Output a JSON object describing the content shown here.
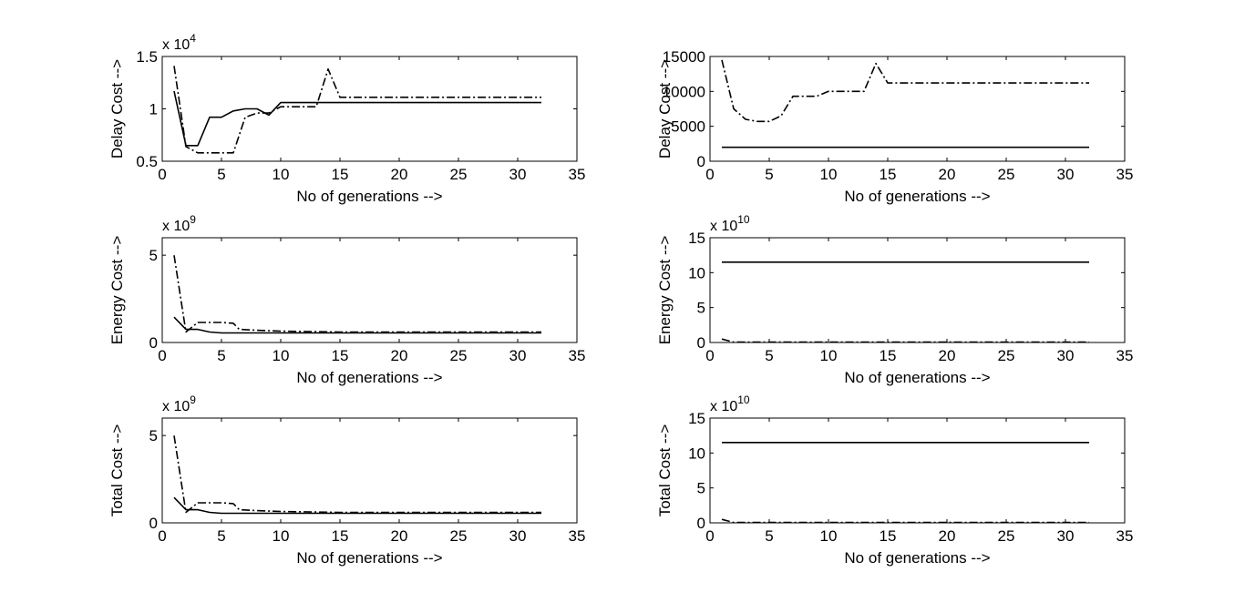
{
  "chart_data": [
    {
      "type": "line",
      "xlabel": "No of generations -->",
      "ylabel": "Delay Cost -->",
      "xlim": [
        0,
        35
      ],
      "xticks": [
        0,
        5,
        10,
        15,
        20,
        25,
        30,
        35
      ],
      "ylim": [
        0.5,
        1.5
      ],
      "yticks": [
        0.5,
        1,
        1.5
      ],
      "ytick_labels": [
        "0.5",
        "1",
        "1.5"
      ],
      "exponent_base": "x 10",
      "exponent_power": "4",
      "grid": false,
      "series": [
        {
          "style": "solid",
          "x": [
            1,
            2,
            3,
            4,
            5,
            6,
            7,
            8,
            9,
            10,
            11,
            12,
            13,
            14,
            15,
            16,
            20,
            25,
            30,
            32
          ],
          "y": [
            1.17,
            0.65,
            0.65,
            0.92,
            0.92,
            0.98,
            1.0,
            1.0,
            0.94,
            1.06,
            1.06,
            1.06,
            1.06,
            1.06,
            1.06,
            1.06,
            1.06,
            1.06,
            1.06,
            1.06
          ]
        },
        {
          "style": "dashdot",
          "x": [
            1,
            2,
            3,
            4,
            5,
            6,
            7,
            8,
            9,
            10,
            11,
            12,
            13,
            14,
            15,
            16,
            20,
            25,
            30,
            32
          ],
          "y": [
            1.41,
            0.64,
            0.58,
            0.58,
            0.58,
            0.58,
            0.92,
            0.96,
            0.96,
            1.02,
            1.02,
            1.02,
            1.02,
            1.38,
            1.11,
            1.11,
            1.11,
            1.11,
            1.11,
            1.11
          ]
        }
      ]
    },
    {
      "type": "line",
      "xlabel": "No of generations -->",
      "ylabel": "Delay Cost -->",
      "xlim": [
        0,
        35
      ],
      "xticks": [
        0,
        5,
        10,
        15,
        20,
        25,
        30,
        35
      ],
      "ylim": [
        0,
        15000
      ],
      "yticks": [
        0,
        5000,
        10000,
        15000
      ],
      "ytick_labels": [
        "0",
        "5000",
        "10000",
        "15000"
      ],
      "exponent_base": "",
      "exponent_power": "",
      "grid": false,
      "series": [
        {
          "style": "solid",
          "x": [
            1,
            32
          ],
          "y": [
            2000,
            2000
          ]
        },
        {
          "style": "dashdot",
          "x": [
            1,
            2,
            3,
            4,
            5,
            6,
            7,
            8,
            9,
            10,
            11,
            12,
            13,
            14,
            15,
            16,
            20,
            25,
            30,
            32
          ],
          "y": [
            14500,
            7500,
            6000,
            5700,
            5700,
            6500,
            9300,
            9300,
            9300,
            10000,
            10000,
            10000,
            10000,
            14000,
            11200,
            11200,
            11200,
            11200,
            11200,
            11200
          ]
        }
      ]
    },
    {
      "type": "line",
      "xlabel": "No of generations -->",
      "ylabel": "Energy Cost -->",
      "xlim": [
        0,
        35
      ],
      "xticks": [
        0,
        5,
        10,
        15,
        20,
        25,
        30,
        35
      ],
      "ylim": [
        0,
        6
      ],
      "yticks": [
        0,
        5
      ],
      "ytick_labels": [
        "0",
        "5"
      ],
      "exponent_base": "x 10",
      "exponent_power": "9",
      "grid": false,
      "series": [
        {
          "style": "solid",
          "x": [
            1,
            2,
            3,
            4,
            5,
            6,
            8,
            10,
            15,
            20,
            25,
            30,
            32
          ],
          "y": [
            1.45,
            0.75,
            0.75,
            0.6,
            0.55,
            0.55,
            0.55,
            0.55,
            0.55,
            0.55,
            0.55,
            0.55,
            0.55
          ]
        },
        {
          "style": "dashdot",
          "x": [
            1,
            2,
            3,
            4,
            5,
            6,
            6.5,
            8,
            10,
            15,
            20,
            25,
            30,
            32
          ],
          "y": [
            5.0,
            0.6,
            1.15,
            1.15,
            1.15,
            1.1,
            0.75,
            0.7,
            0.65,
            0.6,
            0.6,
            0.6,
            0.6,
            0.6
          ]
        }
      ]
    },
    {
      "type": "line",
      "xlabel": "No of generations -->",
      "ylabel": "Energy Cost -->",
      "xlim": [
        0,
        35
      ],
      "xticks": [
        0,
        5,
        10,
        15,
        20,
        25,
        30,
        35
      ],
      "ylim": [
        0,
        15
      ],
      "yticks": [
        0,
        5,
        10,
        15
      ],
      "ytick_labels": [
        "0",
        "5",
        "10",
        "15"
      ],
      "exponent_base": "x 10",
      "exponent_power": "10",
      "grid": false,
      "series": [
        {
          "style": "solid",
          "x": [
            1,
            32
          ],
          "y": [
            11.5,
            11.5
          ]
        },
        {
          "style": "dashdot",
          "x": [
            1,
            2,
            5,
            10,
            20,
            32
          ],
          "y": [
            0.5,
            0.05,
            0.05,
            0.05,
            0.05,
            0.05
          ]
        }
      ]
    },
    {
      "type": "line",
      "xlabel": "No of generations -->",
      "ylabel": "Total Cost -->",
      "xlim": [
        0,
        35
      ],
      "xticks": [
        0,
        5,
        10,
        15,
        20,
        25,
        30,
        35
      ],
      "ylim": [
        0,
        6
      ],
      "yticks": [
        0,
        5
      ],
      "ytick_labels": [
        "0",
        "5"
      ],
      "exponent_base": "x 10",
      "exponent_power": "9",
      "grid": false,
      "series": [
        {
          "style": "solid",
          "x": [
            1,
            2,
            3,
            4,
            5,
            6,
            8,
            10,
            15,
            20,
            25,
            30,
            32
          ],
          "y": [
            1.45,
            0.75,
            0.75,
            0.6,
            0.55,
            0.55,
            0.55,
            0.55,
            0.55,
            0.55,
            0.55,
            0.55,
            0.55
          ]
        },
        {
          "style": "dashdot",
          "x": [
            1,
            2,
            3,
            4,
            5,
            6,
            6.5,
            8,
            10,
            15,
            20,
            25,
            30,
            32
          ],
          "y": [
            5.0,
            0.6,
            1.15,
            1.15,
            1.15,
            1.1,
            0.75,
            0.7,
            0.65,
            0.6,
            0.6,
            0.6,
            0.6,
            0.6
          ]
        }
      ]
    },
    {
      "type": "line",
      "xlabel": "No of generations -->",
      "ylabel": "Total Cost -->",
      "xlim": [
        0,
        35
      ],
      "xticks": [
        0,
        5,
        10,
        15,
        20,
        25,
        30,
        35
      ],
      "ylim": [
        0,
        15
      ],
      "yticks": [
        0,
        5,
        10,
        15
      ],
      "ytick_labels": [
        "0",
        "5",
        "10",
        "15"
      ],
      "exponent_base": "x 10",
      "exponent_power": "10",
      "grid": false,
      "series": [
        {
          "style": "solid",
          "x": [
            1,
            32
          ],
          "y": [
            11.5,
            11.5
          ]
        },
        {
          "style": "dashdot",
          "x": [
            1,
            2,
            5,
            10,
            20,
            32
          ],
          "y": [
            0.5,
            0.05,
            0.05,
            0.05,
            0.05,
            0.05
          ]
        }
      ]
    }
  ],
  "colors": {
    "background": "#ffffff",
    "axes": "#000000",
    "line": "#000000"
  }
}
